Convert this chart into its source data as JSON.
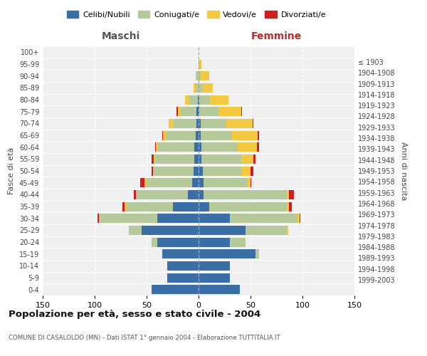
{
  "age_groups": [
    "0-4",
    "5-9",
    "10-14",
    "15-19",
    "20-24",
    "25-29",
    "30-34",
    "35-39",
    "40-44",
    "45-49",
    "50-54",
    "55-59",
    "60-64",
    "65-69",
    "70-74",
    "75-79",
    "80-84",
    "85-89",
    "90-94",
    "95-99",
    "100+"
  ],
  "birth_years": [
    "1999-2003",
    "1994-1998",
    "1989-1993",
    "1984-1988",
    "1979-1983",
    "1974-1978",
    "1969-1973",
    "1964-1968",
    "1959-1963",
    "1954-1958",
    "1949-1953",
    "1944-1948",
    "1939-1943",
    "1934-1938",
    "1929-1933",
    "1924-1928",
    "1919-1923",
    "1914-1918",
    "1909-1913",
    "1904-1908",
    "≤ 1903"
  ],
  "colors": {
    "celibe": "#3a6ea5",
    "coniugato": "#b5c99a",
    "vedovo": "#f5c842",
    "divorziato": "#cc2020"
  },
  "maschi": {
    "celibe": [
      45,
      30,
      30,
      35,
      40,
      55,
      40,
      25,
      10,
      6,
      5,
      4,
      4,
      3,
      2,
      2,
      1,
      0,
      0,
      0,
      0
    ],
    "coniugato": [
      0,
      0,
      0,
      0,
      5,
      12,
      55,
      45,
      50,
      45,
      38,
      38,
      35,
      28,
      22,
      15,
      8,
      3,
      2,
      0,
      0
    ],
    "vedovo": [
      0,
      0,
      0,
      0,
      0,
      0,
      1,
      1,
      0,
      1,
      1,
      1,
      2,
      3,
      5,
      3,
      4,
      2,
      1,
      0,
      0
    ],
    "divorziato": [
      0,
      0,
      0,
      0,
      0,
      0,
      1,
      2,
      2,
      4,
      1,
      2,
      1,
      1,
      0,
      1,
      0,
      0,
      0,
      0,
      0
    ]
  },
  "femmine": {
    "nubile": [
      40,
      30,
      30,
      55,
      30,
      45,
      30,
      10,
      5,
      5,
      4,
      3,
      3,
      2,
      2,
      1,
      1,
      0,
      0,
      0,
      0
    ],
    "coniugata": [
      0,
      0,
      0,
      3,
      15,
      40,
      65,
      75,
      80,
      42,
      38,
      38,
      35,
      30,
      25,
      18,
      10,
      4,
      2,
      1,
      0
    ],
    "vedova": [
      0,
      0,
      0,
      0,
      0,
      1,
      2,
      2,
      2,
      3,
      8,
      12,
      18,
      25,
      25,
      22,
      18,
      10,
      8,
      2,
      0
    ],
    "divorziata": [
      0,
      0,
      0,
      0,
      0,
      0,
      1,
      3,
      5,
      1,
      3,
      2,
      2,
      1,
      1,
      1,
      0,
      0,
      0,
      0,
      0
    ]
  },
  "xlim": 150,
  "title": "Popolazione per età, sesso e stato civile - 2004",
  "subtitle": "COMUNE DI CASALOLDO (MN) - Dati ISTAT 1° gennaio 2004 - Elaborazione TUTTITALIA.IT",
  "xlabel_left": "Maschi",
  "xlabel_right": "Femmine",
  "ylabel_left": "Fasce di età",
  "ylabel_right": "Anni di nascita",
  "bg_color": "#f0f0f0",
  "grid_color": "#cccccc"
}
